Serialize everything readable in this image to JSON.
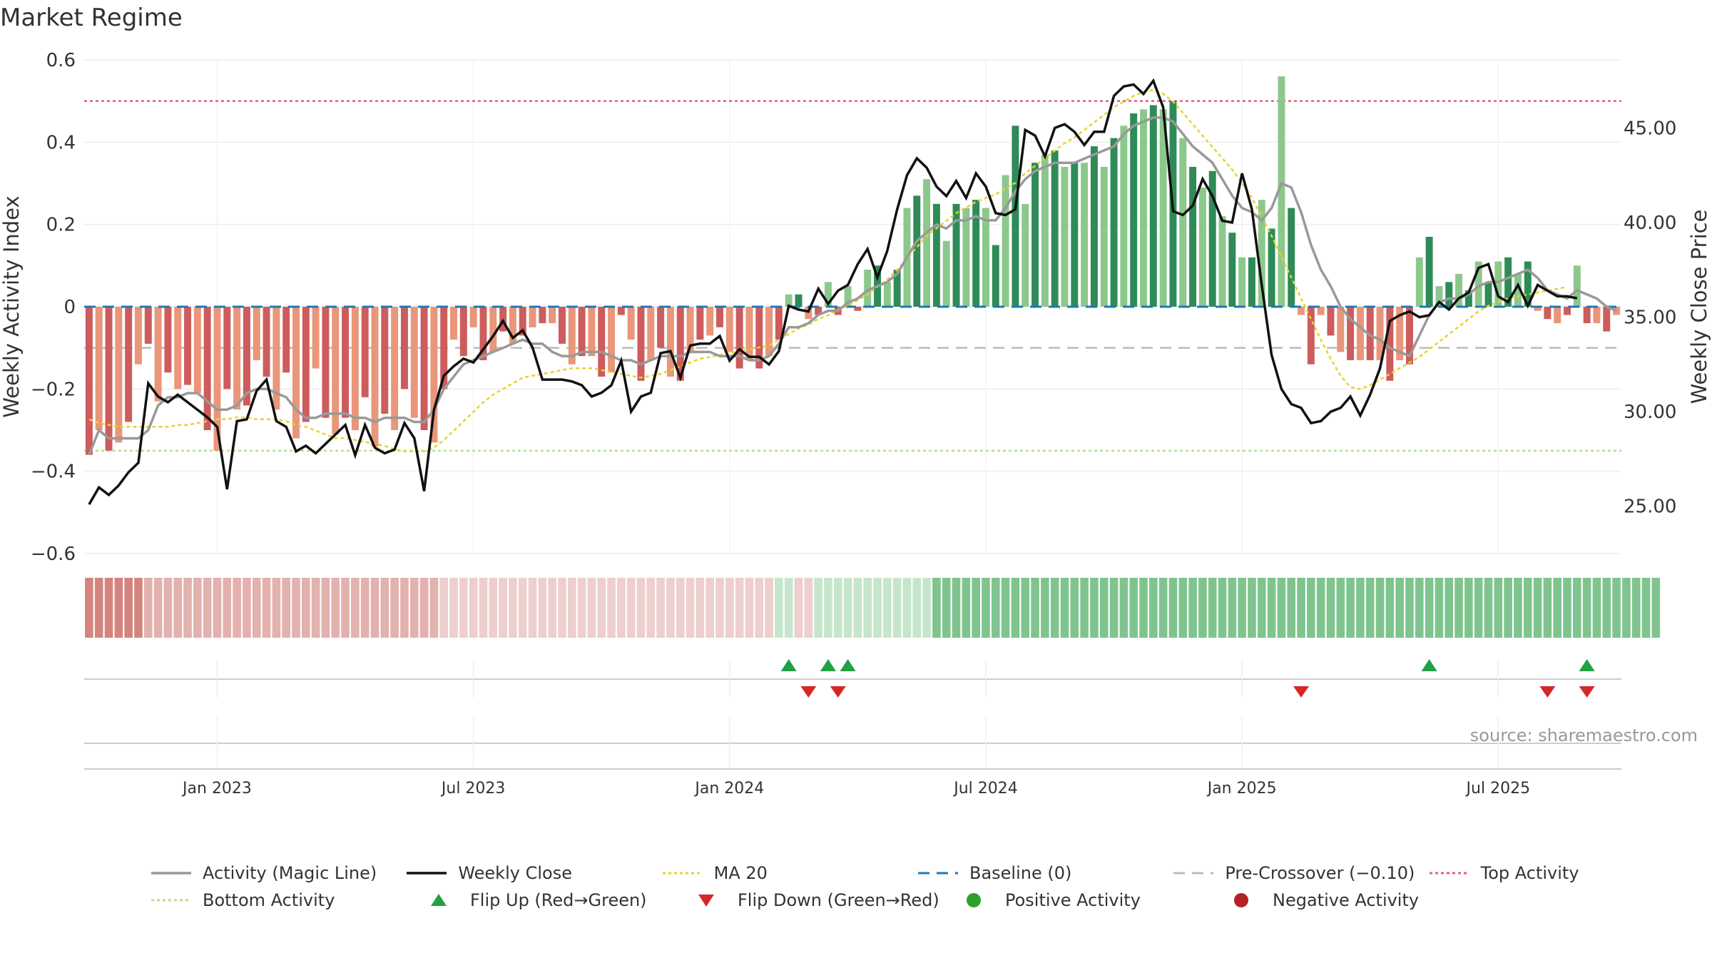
{
  "chart_data": {
    "type": "bar",
    "title": "Market Regime",
    "ylabel": "Weekly Activity Index",
    "y2label": "Weekly Close Price",
    "source": "source: sharemaestro.com",
    "ylim": [
      -0.6,
      0.6
    ],
    "y2lim": [
      22.5,
      48.6
    ],
    "yticks": [
      0.6,
      0.4,
      0.2,
      0,
      -0.2,
      -0.4,
      -0.6
    ],
    "ytick_labels": [
      "0.6",
      "0.4",
      "0.2",
      "0",
      "−0.2",
      "−0.4",
      "−0.6"
    ],
    "y2ticks": [
      45,
      40,
      35,
      30,
      25
    ],
    "y2tick_labels": [
      "45.00",
      "40.00",
      "35.00",
      "30.00",
      "25.00"
    ],
    "xtick_labels": [
      "Jan 2023",
      "Jul 2023",
      "Jan 2024",
      "Jul 2024",
      "Jan 2025",
      "Jul 2025"
    ],
    "xtick_weeks": [
      13,
      39,
      65,
      91,
      117,
      143
    ],
    "grid": true,
    "legend_position": "bottom",
    "reference_lines": {
      "baseline": 0,
      "pre_crossover": -0.1,
      "top_activity": 0.5,
      "bottom_activity": -0.35
    },
    "activity": [
      -0.36,
      -0.3,
      -0.35,
      -0.33,
      -0.28,
      -0.14,
      -0.09,
      -0.23,
      -0.16,
      -0.2,
      -0.19,
      -0.21,
      -0.3,
      -0.35,
      -0.2,
      -0.25,
      -0.24,
      -0.13,
      -0.17,
      -0.25,
      -0.16,
      -0.32,
      -0.28,
      -0.15,
      -0.27,
      -0.31,
      -0.27,
      -0.3,
      -0.22,
      -0.34,
      -0.26,
      -0.3,
      -0.2,
      -0.27,
      -0.3,
      -0.33,
      -0.2,
      -0.08,
      -0.12,
      -0.05,
      -0.13,
      -0.11,
      -0.06,
      -0.09,
      -0.07,
      -0.05,
      -0.04,
      -0.04,
      -0.09,
      -0.14,
      -0.12,
      -0.12,
      -0.17,
      -0.16,
      -0.02,
      -0.08,
      -0.18,
      -0.13,
      -0.1,
      -0.17,
      -0.18,
      -0.11,
      -0.08,
      -0.07,
      -0.05,
      -0.11,
      -0.15,
      -0.13,
      -0.15,
      -0.12,
      -0.08,
      0.03,
      0.03,
      -0.03,
      -0.02,
      0.06,
      -0.02,
      0.05,
      -0.01,
      0.09,
      0.1,
      0.06,
      0.09,
      0.24,
      0.27,
      0.31,
      0.25,
      0.16,
      0.25,
      0.24,
      0.26,
      0.24,
      0.15,
      0.32,
      0.44,
      0.25,
      0.35,
      0.37,
      0.38,
      0.34,
      0.35,
      0.35,
      0.39,
      0.34,
      0.41,
      0.44,
      0.47,
      0.48,
      0.49,
      0.48,
      0.5,
      0.41,
      0.34,
      0.29,
      0.33,
      0.22,
      0.18,
      0.12,
      0.12,
      0.26,
      0.19,
      0.56,
      0.24,
      -0.02,
      -0.14,
      -0.02,
      -0.07,
      -0.11,
      -0.13,
      -0.13,
      -0.13,
      -0.13,
      -0.18,
      -0.13,
      -0.14,
      0.12,
      0.17,
      0.05,
      0.06,
      0.08,
      0.04,
      0.11,
      0.06,
      0.11,
      0.12,
      0.08,
      0.11,
      -0.01,
      -0.03,
      -0.04,
      -0.02,
      0.1,
      -0.04,
      -0.04,
      -0.06,
      -0.02
    ],
    "magic_line": [
      -0.36,
      -0.3,
      -0.32,
      -0.32,
      -0.32,
      -0.32,
      -0.3,
      -0.24,
      -0.22,
      -0.22,
      -0.21,
      -0.21,
      -0.23,
      -0.25,
      -0.25,
      -0.24,
      -0.21,
      -0.2,
      -0.2,
      -0.21,
      -0.22,
      -0.25,
      -0.27,
      -0.27,
      -0.26,
      -0.26,
      -0.26,
      -0.27,
      -0.27,
      -0.28,
      -0.27,
      -0.27,
      -0.27,
      -0.28,
      -0.28,
      -0.25,
      -0.2,
      -0.17,
      -0.14,
      -0.13,
      -0.12,
      -0.11,
      -0.1,
      -0.09,
      -0.08,
      -0.09,
      -0.09,
      -0.11,
      -0.12,
      -0.12,
      -0.11,
      -0.11,
      -0.11,
      -0.12,
      -0.13,
      -0.13,
      -0.14,
      -0.13,
      -0.12,
      -0.12,
      -0.12,
      -0.11,
      -0.11,
      -0.11,
      -0.12,
      -0.12,
      -0.12,
      -0.13,
      -0.13,
      -0.12,
      -0.09,
      -0.05,
      -0.05,
      -0.04,
      -0.02,
      -0.01,
      -0.01,
      0.01,
      0.02,
      0.04,
      0.05,
      0.06,
      0.08,
      0.12,
      0.16,
      0.18,
      0.2,
      0.19,
      0.21,
      0.21,
      0.22,
      0.21,
      0.21,
      0.24,
      0.28,
      0.31,
      0.33,
      0.34,
      0.35,
      0.35,
      0.35,
      0.36,
      0.37,
      0.38,
      0.39,
      0.42,
      0.44,
      0.45,
      0.46,
      0.46,
      0.45,
      0.42,
      0.39,
      0.37,
      0.35,
      0.31,
      0.27,
      0.24,
      0.23,
      0.21,
      0.24,
      0.3,
      0.29,
      0.23,
      0.15,
      0.09,
      0.05,
      0.0,
      -0.03,
      -0.05,
      -0.07,
      -0.08,
      -0.1,
      -0.11,
      -0.12,
      -0.07,
      -0.02,
      0.01,
      0.02,
      0.02,
      0.03,
      0.05,
      0.06,
      0.06,
      0.07,
      0.08,
      0.09,
      0.07,
      0.04,
      0.03,
      0.02,
      0.04,
      0.03,
      0.02,
      0.0,
      -0.01
    ],
    "close": [
      25.1,
      26.0,
      25.6,
      26.1,
      26.8,
      27.3,
      31.5,
      30.8,
      30.5,
      30.9,
      30.5,
      30.1,
      29.7,
      29.2,
      25.9,
      29.5,
      29.6,
      31.1,
      31.7,
      29.5,
      29.2,
      27.9,
      28.2,
      27.8,
      28.3,
      28.8,
      29.3,
      27.7,
      29.3,
      28.1,
      27.8,
      28.0,
      29.4,
      28.6,
      25.8,
      30.1,
      31.9,
      32.4,
      32.8,
      32.6,
      33.3,
      34.0,
      34.8,
      33.9,
      34.3,
      33.4,
      31.7,
      31.7,
      31.7,
      31.6,
      31.4,
      30.8,
      31.0,
      31.4,
      32.7,
      30.0,
      30.8,
      31.0,
      33.1,
      33.2,
      31.8,
      33.5,
      33.6,
      33.6,
      34.0,
      32.7,
      33.3,
      32.9,
      32.9,
      32.5,
      33.2,
      35.6,
      35.4,
      35.3,
      36.5,
      35.7,
      36.4,
      36.7,
      37.8,
      38.6,
      37.1,
      38.5,
      40.7,
      42.5,
      43.4,
      42.9,
      41.9,
      41.4,
      42.2,
      41.3,
      42.6,
      41.9,
      40.5,
      40.4,
      40.7,
      44.9,
      44.6,
      43.5,
      45.0,
      45.2,
      44.8,
      44.1,
      44.8,
      44.8,
      46.7,
      47.2,
      47.3,
      46.8,
      47.5,
      46.1,
      40.6,
      40.4,
      40.9,
      42.3,
      41.4,
      40.1,
      40.0,
      42.6,
      40.7,
      36.7,
      33.0,
      31.2,
      30.4,
      30.2,
      29.4,
      29.5,
      30.0,
      30.2,
      30.8,
      29.8,
      30.9,
      32.3,
      34.8,
      35.1,
      35.3,
      35.0,
      35.1,
      35.8,
      35.4,
      36.0,
      36.3,
      37.6,
      37.8,
      36.1,
      35.8,
      36.7,
      35.6,
      36.7,
      36.4,
      36.1,
      36.1,
      36.0
    ],
    "ma20": [
      29.6,
      29.4,
      29.3,
      29.2,
      29.2,
      29.2,
      29.2,
      29.2,
      29.2,
      29.3,
      29.3,
      29.4,
      29.5,
      29.6,
      29.6,
      29.7,
      29.7,
      29.6,
      29.6,
      29.6,
      29.5,
      29.3,
      29.2,
      29.0,
      28.8,
      28.6,
      28.6,
      28.5,
      28.4,
      28.3,
      28.2,
      28.0,
      27.9,
      27.9,
      27.9,
      28.1,
      28.5,
      29.0,
      29.5,
      30.0,
      30.5,
      30.9,
      31.2,
      31.5,
      31.8,
      31.9,
      32.0,
      32.1,
      32.2,
      32.3,
      32.3,
      32.3,
      32.2,
      32.1,
      32.0,
      31.9,
      31.8,
      31.9,
      32.0,
      32.2,
      32.4,
      32.6,
      32.8,
      32.9,
      33.0,
      33.1,
      33.2,
      33.3,
      33.4,
      33.5,
      33.8,
      34.1,
      34.4,
      34.6,
      34.9,
      35.1,
      35.4,
      35.6,
      35.9,
      36.2,
      36.6,
      37.0,
      37.5,
      38.1,
      38.7,
      39.3,
      39.7,
      40.1,
      40.5,
      40.8,
      41.1,
      41.3,
      41.5,
      41.8,
      42.1,
      42.6,
      43.0,
      43.4,
      43.8,
      44.2,
      44.5,
      44.9,
      45.3,
      45.7,
      46.1,
      46.4,
      46.7,
      46.9,
      47.0,
      46.8,
      46.4,
      45.8,
      45.2,
      44.6,
      44.0,
      43.4,
      42.8,
      42.1,
      41.3,
      40.3,
      39.3,
      38.2,
      37.1,
      36.0,
      34.9,
      33.8,
      32.8,
      31.9,
      31.3,
      31.2,
      31.4,
      31.7,
      32.0,
      32.3,
      32.6,
      32.9,
      33.3,
      33.7,
      34.1,
      34.5,
      34.9,
      35.3,
      35.6,
      35.8,
      36.0,
      36.1,
      36.2,
      36.3,
      36.4,
      36.5,
      36.6
    ],
    "regime": [
      -1,
      -1,
      -1,
      -1,
      -1,
      -1,
      -2,
      -2,
      -2,
      -2,
      -2,
      -2,
      -2,
      -2,
      -2,
      -2,
      -2,
      -2,
      -2,
      -2,
      -2,
      -2,
      -2,
      -2,
      -2,
      -2,
      -2,
      -2,
      -2,
      -2,
      -2,
      -2,
      -2,
      -2,
      -2,
      -2,
      -3,
      -3,
      -3,
      -3,
      -3,
      -3,
      -3,
      -3,
      -3,
      -3,
      -3,
      -3,
      -3,
      -3,
      -3,
      -3,
      -3,
      -3,
      -3,
      -3,
      -3,
      -3,
      -3,
      -3,
      -3,
      -3,
      -3,
      -3,
      -3,
      -3,
      -3,
      -3,
      -3,
      -3,
      1,
      1,
      -3,
      -3,
      1,
      1,
      1,
      1,
      1,
      1,
      1,
      1,
      1,
      1,
      1,
      1,
      2,
      2,
      2,
      2,
      2,
      2,
      2,
      2,
      2,
      2,
      2,
      2,
      2,
      2,
      2,
      2,
      2,
      2,
      2,
      2,
      2,
      2,
      2,
      2,
      2,
      2,
      2,
      2,
      2,
      2,
      2,
      2,
      2,
      2,
      2,
      2,
      2,
      2,
      2,
      2,
      2,
      2,
      2,
      2,
      2,
      2,
      2,
      2,
      2,
      2,
      2,
      2,
      2,
      2,
      2,
      2,
      2,
      2,
      2,
      2,
      2,
      2,
      2,
      2,
      2,
      2,
      2,
      2,
      2,
      2,
      2,
      2,
      2,
      2
    ],
    "flips": {
      "up": [
        71,
        75,
        77,
        136,
        152
      ],
      "down": [
        73,
        76,
        123,
        148,
        152
      ]
    },
    "series_names": [
      "Activity (Magic Line)",
      "Weekly Close",
      "MA 20"
    ],
    "colors": {
      "pos_strong": "#2e8b57",
      "pos_light": "#8cc88c",
      "neg_strong": "#cd5c5c",
      "neg_light": "#e9967a",
      "magic_line": "#999999",
      "close": "#111111",
      "ma20": "#e6d42a",
      "baseline": "#1f77b4",
      "pre_crossover": "#bbbbbb",
      "top_activity": "#e0607a",
      "bottom_activity": "#b5e08a",
      "flip_up": "#22a045",
      "flip_down": "#d62728",
      "positive_dot": "#2ca02c",
      "negative_dot": "#b22222"
    }
  },
  "legend": [
    {
      "label": "Activity (Magic Line)",
      "icon": "gray-line-icon"
    },
    {
      "label": "Weekly Close",
      "icon": "black-line-icon"
    },
    {
      "label": "MA 20",
      "icon": "yellow-dotted-line-icon"
    },
    {
      "label": "Baseline (0)",
      "icon": "blue-dashed-line-icon"
    },
    {
      "label": "Pre-Crossover (−0.10)",
      "icon": "gray-dashed-line-icon"
    },
    {
      "label": "Top Activity",
      "icon": "red-dotted-line-icon"
    },
    {
      "label": "Bottom Activity",
      "icon": "green-dotted-line-icon"
    },
    {
      "label": "Flip Up (Red→Green)",
      "icon": "green-triangle-up-icon"
    },
    {
      "label": "Flip Down (Green→Red)",
      "icon": "red-triangle-down-icon"
    },
    {
      "label": "Positive Activity",
      "icon": "green-dot-icon"
    },
    {
      "label": "Negative Activity",
      "icon": "red-dot-icon"
    }
  ]
}
